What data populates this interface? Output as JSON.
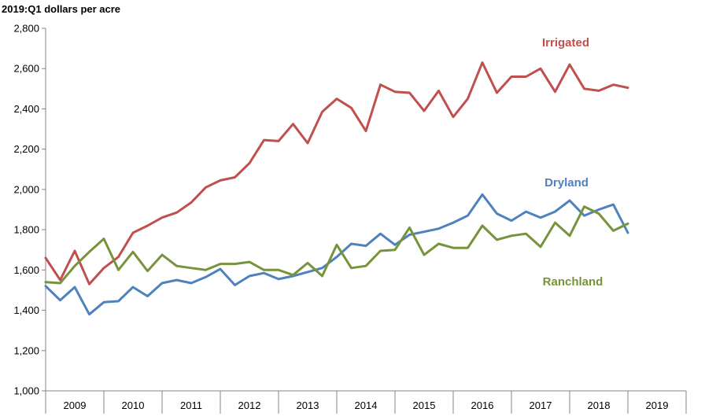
{
  "chart_data": {
    "type": "line",
    "ylabel": "2019:Q1 dollars per acre",
    "ylim": [
      1000,
      2800
    ],
    "yticks": [
      1000,
      1200,
      1400,
      1600,
      1800,
      2000,
      2200,
      2400,
      2600,
      2800
    ],
    "ytick_labels": [
      "1,000",
      "1,200",
      "1,400",
      "1,600",
      "1,800",
      "2,000",
      "2,200",
      "2,400",
      "2,600",
      "2,800"
    ],
    "x_range": [
      2009.0,
      2020.0
    ],
    "x_categories": [
      "2009",
      "2010",
      "2011",
      "2012",
      "2013",
      "2014",
      "2015",
      "2016",
      "2017",
      "2018",
      "2019"
    ],
    "x": [
      2009.0,
      2009.25,
      2009.5,
      2009.75,
      2010.0,
      2010.25,
      2010.5,
      2010.75,
      2011.0,
      2011.25,
      2011.5,
      2011.75,
      2012.0,
      2012.25,
      2012.5,
      2012.75,
      2013.0,
      2013.25,
      2013.5,
      2013.75,
      2014.0,
      2014.25,
      2014.5,
      2014.75,
      2015.0,
      2015.25,
      2015.5,
      2015.75,
      2016.0,
      2016.25,
      2016.5,
      2016.75,
      2017.0,
      2017.25,
      2017.5,
      2017.75,
      2018.0,
      2018.25,
      2018.5,
      2018.75,
      2019.0
    ],
    "series": [
      {
        "name": "Irrigated",
        "color": "#c0504d",
        "values": [
          1660,
          1550,
          1695,
          1530,
          1610,
          1665,
          1785,
          1820,
          1860,
          1885,
          1935,
          2010,
          2045,
          2060,
          2130,
          2245,
          2240,
          2325,
          2230,
          2385,
          2450,
          2405,
          2290,
          2520,
          2485,
          2480,
          2390,
          2490,
          2360,
          2450,
          2630,
          2480,
          2560,
          2560,
          2600,
          2485,
          2620,
          2500,
          2490,
          2520,
          2505
        ]
      },
      {
        "name": "Dryland",
        "color": "#4f81bd",
        "values": [
          1520,
          1450,
          1515,
          1380,
          1440,
          1445,
          1515,
          1470,
          1535,
          1550,
          1535,
          1565,
          1605,
          1525,
          1570,
          1585,
          1555,
          1570,
          1590,
          1610,
          1665,
          1730,
          1720,
          1780,
          1725,
          1775,
          1790,
          1805,
          1835,
          1870,
          1975,
          1880,
          1845,
          1890,
          1860,
          1890,
          1945,
          1870,
          1900,
          1925,
          1785
        ]
      },
      {
        "name": "Ranchland",
        "color": "#77933c",
        "values": [
          1540,
          1535,
          1620,
          1690,
          1755,
          1600,
          1690,
          1595,
          1675,
          1620,
          1610,
          1600,
          1630,
          1630,
          1640,
          1600,
          1600,
          1575,
          1635,
          1570,
          1725,
          1610,
          1620,
          1695,
          1700,
          1810,
          1675,
          1730,
          1710,
          1710,
          1820,
          1750,
          1770,
          1780,
          1715,
          1835,
          1770,
          1915,
          1880,
          1795,
          1830
        ]
      }
    ]
  }
}
